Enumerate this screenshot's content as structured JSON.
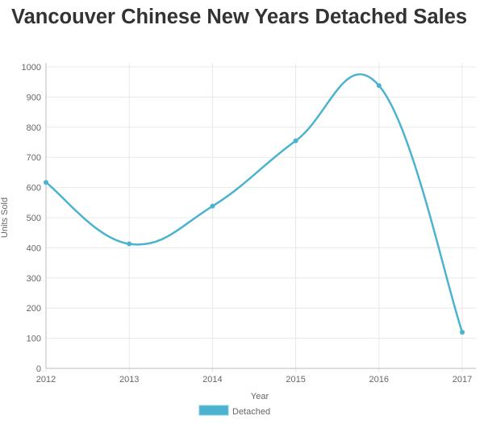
{
  "chart_data": {
    "type": "line",
    "title": "Vancouver Chinese New Years Detached Sales",
    "xlabel": "Year",
    "ylabel": "Units Sold",
    "categories": [
      "2012",
      "2013",
      "2014",
      "2015",
      "2016",
      "2017"
    ],
    "series": [
      {
        "name": "Detached",
        "color": "#4bb3cf",
        "values": [
          617,
          413,
          538,
          755,
          938,
          120
        ]
      }
    ],
    "ylim": [
      0,
      1000
    ],
    "yticks": [
      0,
      100,
      200,
      300,
      400,
      500,
      600,
      700,
      800,
      900,
      1000
    ],
    "grid": true,
    "legend": "bottom"
  }
}
